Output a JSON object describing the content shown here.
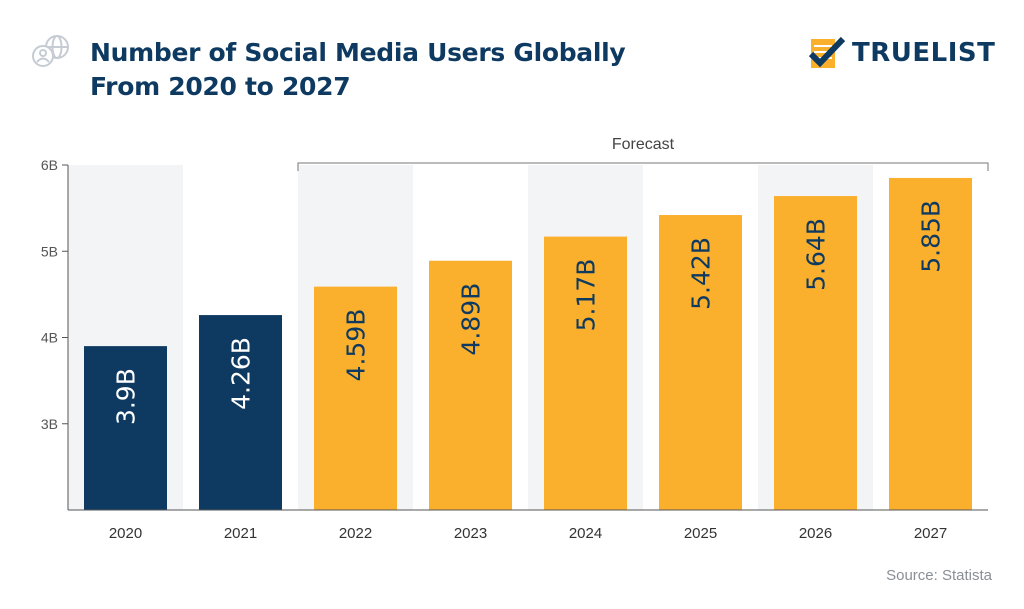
{
  "header": {
    "title_line1": "Number of Social Media Users Globally",
    "title_line2": "From 2020 to 2027",
    "logo_text": "TRUELIST",
    "icon": "globe-user-icon"
  },
  "source": "Source: Statista",
  "chart_data": {
    "type": "bar",
    "categories": [
      "2020",
      "2021",
      "2022",
      "2023",
      "2024",
      "2025",
      "2026",
      "2027"
    ],
    "values": [
      3.9,
      4.26,
      4.59,
      4.89,
      5.17,
      5.42,
      5.64,
      5.85
    ],
    "data_labels": [
      "3.9B",
      "4.26B",
      "4.59B",
      "4.89B",
      "5.17B",
      "5.42B",
      "5.64B",
      "5.85B"
    ],
    "ylim": [
      2,
      6
    ],
    "yticks": [
      3,
      4,
      5,
      6
    ],
    "ytick_labels": [
      "3B",
      "4B",
      "5B",
      "6B"
    ],
    "forecast_label": "Forecast",
    "forecast_categories": [
      "2022",
      "2023",
      "2024",
      "2025",
      "2026",
      "2027"
    ],
    "colors": {
      "actual": "#0e3a62",
      "forecast": "#fbb02d",
      "band": "#f3f4f6",
      "axis": "#555555"
    },
    "grid": false
  }
}
